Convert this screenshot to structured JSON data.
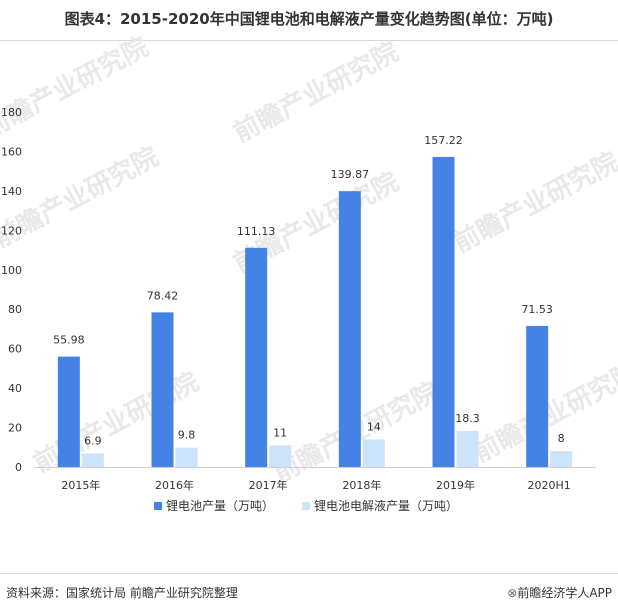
{
  "title": "图表4：2015-2020年中国锂电池和电解液产量变化趋势图(单位：万吨)",
  "source": "资料来源：国家统计局 前瞻产业研究院整理",
  "brand": "前瞻经济学人APP",
  "watermark": "前瞻产业研究院",
  "colors": {
    "series1": "#4582e6",
    "series2": "#cde2fb"
  },
  "chart_data": {
    "type": "bar",
    "categories": [
      "2015年",
      "2016年",
      "2017年",
      "2018年",
      "2019年",
      "2020H1"
    ],
    "series": [
      {
        "name": "锂电池产量（万吨）",
        "values": [
          55.98,
          78.42,
          111.13,
          139.87,
          157.22,
          71.53
        ]
      },
      {
        "name": "锂电池电解液产量（万吨）",
        "values": [
          6.9,
          9.8,
          11,
          14,
          18.3,
          8
        ]
      }
    ],
    "value_labels": [
      [
        "55.98",
        "78.42",
        "111.13",
        "139.87",
        "157.22",
        "71.53"
      ],
      [
        "6.9",
        "9.8",
        "11",
        "14",
        "18.3",
        "8"
      ]
    ],
    "ylim": [
      0,
      180
    ],
    "yticks": [
      0,
      20,
      40,
      60,
      80,
      100,
      120,
      140,
      160,
      180
    ],
    "grid": false,
    "legend_position": "bottom"
  }
}
